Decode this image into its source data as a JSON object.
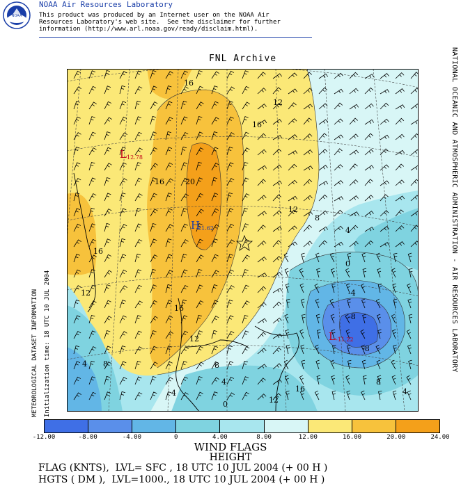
{
  "header": {
    "org_title": "NOAA Air Resources Laboratory",
    "disclaimer": "This product was produced by an Internet user on the NOAA Air\nResources Laboratory's web site.  See the disclaimer for further\ninformation (http://www.arl.noaa.gov/ready/disclaim.html).",
    "logo_icon": "noaa-logo-icon",
    "logo_text": "NOAA"
  },
  "map": {
    "title": "FNL Archive",
    "contour_labels": [
      "16",
      "12",
      "16",
      "16",
      "20",
      "16",
      "12",
      "16",
      "12",
      "8",
      "4",
      "0",
      "-4",
      "-8",
      "-8",
      "8",
      "4",
      "4",
      "12",
      "0",
      "4",
      "8",
      "12",
      "16",
      "4",
      "8"
    ],
    "low_labels": [
      {
        "letter": "L",
        "value": "12.78"
      },
      {
        "letter": "L",
        "value": "-11.22"
      }
    ],
    "high_label": {
      "letter": "H",
      "value": "21.62"
    }
  },
  "side_labels": {
    "left_1": "METEOROLOGICAL DATASET INFORMATION",
    "left_2": "Initialization time: 18 UTC 10 JUL 2004",
    "right": "NATIONAL OCEANIC AND ATMOSPHERIC ADMINISTRATION - AIR RESOURCES LABORATORY"
  },
  "colorbar": {
    "ticks": [
      "-12.00",
      "-8.00",
      "-4.00",
      "0",
      "4.00",
      "8.00",
      "12.00",
      "16.00",
      "20.00",
      "24.00"
    ],
    "colors": [
      "#3f6fe6",
      "#5a8fea",
      "#62b6e6",
      "#7fd3e0",
      "#a8e6ee",
      "#d8f6f6",
      "#fbe877",
      "#f7c23c",
      "#f4a01a"
    ]
  },
  "footer": {
    "line1": "WIND FLAGS",
    "line2": "HEIGHT",
    "line3": "FLAG (KNTS),  LVL= SFC , 18 UTC 10 JUL 2004 (+ 00 H )",
    "line4": "HGTS ( DM ),  LVL=1000., 18 UTC 10 JUL 2004 (+ 00 H )"
  }
}
